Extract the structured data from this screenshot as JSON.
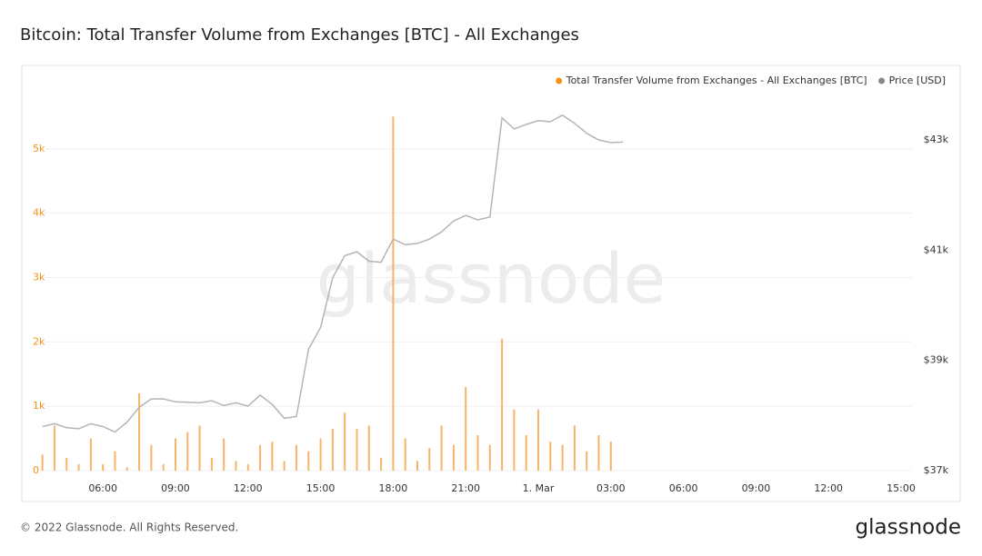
{
  "chart_data": {
    "type": "bar-line",
    "title": "Bitcoin: Total Transfer Volume from Exchanges [BTC] - All Exchanges",
    "watermark": "glassnode",
    "footer": "© 2022 Glassnode. All Rights Reserved.",
    "brand": "glassnode",
    "legend_position": "top-right",
    "grid": true,
    "x": [
      3.5,
      4,
      4.5,
      5,
      5.5,
      6,
      6.5,
      7,
      7.5,
      8,
      8.5,
      9,
      9.5,
      10,
      10.5,
      11,
      11.5,
      12,
      12.5,
      13,
      13.5,
      14,
      14.5,
      15,
      15.5,
      16,
      16.5,
      17,
      17.5,
      18,
      18.5,
      19,
      19.5,
      20,
      20.5,
      21,
      21.5,
      22,
      22.5,
      23,
      23.5,
      24,
      24.5,
      25,
      25.5,
      26,
      26.5,
      27,
      27.5
    ],
    "xlim": [
      3.4,
      39.45
    ],
    "xticks": [
      {
        "value": 6,
        "label": "06:00"
      },
      {
        "value": 9,
        "label": "09:00"
      },
      {
        "value": 12,
        "label": "12:00"
      },
      {
        "value": 15,
        "label": "15:00"
      },
      {
        "value": 18,
        "label": "18:00"
      },
      {
        "value": 21,
        "label": "21:00"
      },
      {
        "value": 24,
        "label": "1. Mar"
      },
      {
        "value": 27,
        "label": "03:00"
      },
      {
        "value": 30,
        "label": "06:00"
      },
      {
        "value": 33,
        "label": "09:00"
      },
      {
        "value": 36,
        "label": "12:00"
      },
      {
        "value": 39,
        "label": "15:00"
      }
    ],
    "ylim": [
      0,
      5900
    ],
    "yticks": [
      0,
      {
        "value": 1000,
        "label": "1k"
      },
      {
        "value": 2000,
        "label": "2k"
      },
      {
        "value": 3000,
        "label": "3k"
      },
      {
        "value": 4000,
        "label": "4k"
      },
      {
        "value": 5000,
        "label": "5k"
      }
    ],
    "y2lim": [
      37000,
      43890
    ],
    "y2ticks": [
      {
        "value": 37000,
        "label": "$37k"
      },
      {
        "value": 39000,
        "label": "$39k"
      },
      {
        "value": 41000,
        "label": "$41k"
      },
      {
        "value": 43000,
        "label": "$43k"
      }
    ],
    "series": [
      {
        "name": "Total Transfer Volume from Exchanges - All Exchanges [BTC]",
        "type": "bar",
        "color": "#f7b467",
        "legend_color": "#f7931a",
        "values": [
          250,
          700,
          200,
          100,
          500,
          100,
          300,
          50,
          1200,
          400,
          100,
          500,
          600,
          700,
          200,
          500,
          150,
          100,
          400,
          450,
          150,
          400,
          300,
          500,
          650,
          900,
          650,
          700,
          200,
          5500,
          500,
          150,
          350,
          700,
          400,
          1300,
          550,
          400,
          2050,
          950,
          550,
          950,
          450,
          400,
          700,
          300,
          550,
          450,
          null
        ]
      },
      {
        "name": "Price [USD]",
        "type": "line",
        "axis": "y2",
        "color": "#b5b5b5",
        "legend_color": "#888888",
        "values": [
          37800,
          37850,
          37780,
          37760,
          37850,
          37800,
          37700,
          37880,
          38150,
          38300,
          38300,
          38250,
          38240,
          38230,
          38270,
          38180,
          38230,
          38170,
          38370,
          38200,
          37950,
          37980,
          39200,
          39600,
          40500,
          40900,
          40970,
          40800,
          40780,
          41200,
          41100,
          41120,
          41200,
          41330,
          41530,
          41630,
          41550,
          41600,
          43400,
          43200,
          43280,
          43350,
          43330,
          43450,
          43300,
          43120,
          43000,
          42950,
          42960
        ]
      }
    ]
  }
}
